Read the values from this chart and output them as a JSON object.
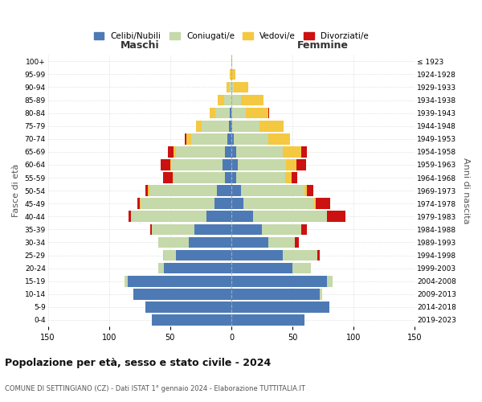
{
  "age_groups": [
    "0-4",
    "5-9",
    "10-14",
    "15-19",
    "20-24",
    "25-29",
    "30-34",
    "35-39",
    "40-44",
    "45-49",
    "50-54",
    "55-59",
    "60-64",
    "65-69",
    "70-74",
    "75-79",
    "80-84",
    "85-89",
    "90-94",
    "95-99",
    "100+"
  ],
  "birth_years": [
    "2019-2023",
    "2014-2018",
    "2009-2013",
    "2004-2008",
    "1999-2003",
    "1994-1998",
    "1989-1993",
    "1984-1988",
    "1979-1983",
    "1974-1978",
    "1969-1973",
    "1964-1968",
    "1959-1963",
    "1954-1958",
    "1949-1953",
    "1944-1948",
    "1939-1943",
    "1934-1938",
    "1929-1933",
    "1924-1928",
    "≤ 1923"
  ],
  "colors": {
    "celibe": "#4d7ab5",
    "coniugato": "#c5d9aa",
    "vedovo": "#f5c842",
    "divorziato": "#cc1111"
  },
  "maschi": {
    "celibe": [
      65,
      70,
      80,
      85,
      55,
      45,
      35,
      30,
      20,
      14,
      12,
      5,
      7,
      5,
      3,
      2,
      1,
      0,
      0,
      0,
      0
    ],
    "coniugato": [
      0,
      0,
      0,
      2,
      5,
      10,
      25,
      35,
      62,
      60,
      55,
      42,
      42,
      40,
      30,
      22,
      12,
      6,
      2,
      0,
      0
    ],
    "vedovo": [
      0,
      0,
      0,
      0,
      0,
      1,
      0,
      0,
      0,
      1,
      1,
      1,
      1,
      2,
      4,
      5,
      5,
      5,
      2,
      1,
      0
    ],
    "divorziato": [
      0,
      0,
      0,
      0,
      0,
      0,
      0,
      1,
      2,
      2,
      2,
      8,
      8,
      5,
      1,
      0,
      0,
      0,
      0,
      0,
      0
    ]
  },
  "femmine": {
    "nubile": [
      60,
      80,
      72,
      78,
      50,
      42,
      30,
      25,
      18,
      10,
      8,
      4,
      5,
      4,
      2,
      1,
      0,
      0,
      0,
      0,
      0
    ],
    "coniugata": [
      0,
      0,
      2,
      5,
      15,
      28,
      22,
      32,
      60,
      58,
      52,
      40,
      40,
      38,
      28,
      22,
      12,
      8,
      2,
      0,
      0
    ],
    "vedova": [
      0,
      0,
      0,
      0,
      0,
      0,
      0,
      0,
      0,
      1,
      2,
      5,
      8,
      15,
      18,
      20,
      18,
      18,
      12,
      3,
      1
    ],
    "divorziata": [
      0,
      0,
      0,
      0,
      0,
      2,
      3,
      5,
      15,
      12,
      5,
      5,
      8,
      5,
      0,
      0,
      1,
      0,
      0,
      0,
      0
    ]
  },
  "title": "Popolazione per età, sesso e stato civile - 2024",
  "subtitle": "COMUNE DI SETTINGIANO (CZ) - Dati ISTAT 1° gennaio 2024 - Elaborazione TUTTITALIA.IT",
  "ylabel": "Fasce di età",
  "ylabel_right": "Anni di nascita",
  "xlabel_left": "Maschi",
  "xlabel_right": "Femmine",
  "xlim": 150,
  "legend_labels": [
    "Celibi/Nubili",
    "Coniugati/e",
    "Vedovi/e",
    "Divorziati/e"
  ]
}
